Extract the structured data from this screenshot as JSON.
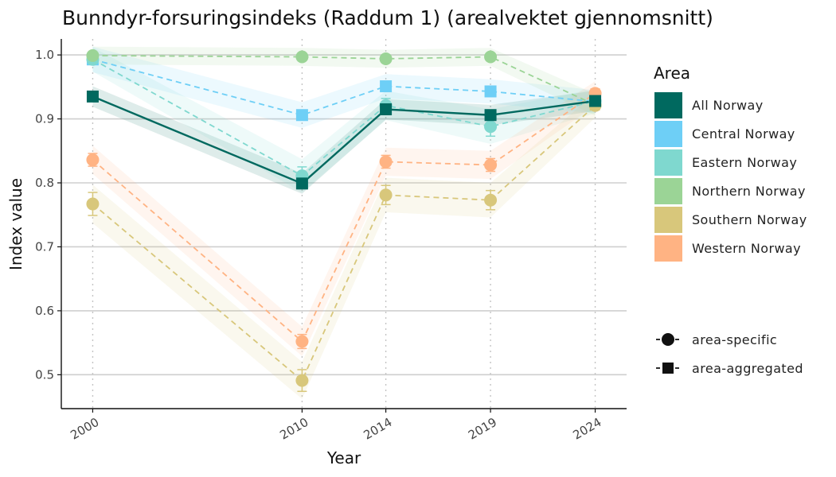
{
  "chart_data": {
    "type": "line",
    "title": "Bunndyr-forsuringsindeks (Raddum 1) (arealvektet gjennomsnitt)",
    "xlabel": "Year",
    "ylabel": "Index value",
    "x": [
      2000,
      2010,
      2014,
      2019,
      2024
    ],
    "x_tick_labels": [
      "2000",
      "2010",
      "2014",
      "2019",
      "2024"
    ],
    "xlim": [
      1998.5,
      2025.5
    ],
    "y_ticks": [
      0.5,
      0.6,
      0.7,
      0.8,
      0.9,
      1.0
    ],
    "y_tick_labels": [
      "0.5",
      "0.6",
      "0.7",
      "0.8",
      "0.9",
      "1.0"
    ],
    "ylim": [
      0.447,
      1.025
    ],
    "grid": "horizontal major + dotted vertical at data years",
    "legend": {
      "title": "Area",
      "position": "right",
      "shape_entries": [
        {
          "label": "area-specific",
          "shape": "circle"
        },
        {
          "label": "area-aggregated",
          "shape": "square"
        }
      ]
    },
    "series": [
      {
        "name": "All Norway",
        "color": "#00695f",
        "shape": "square",
        "line": "solid",
        "values": [
          0.935,
          0.799,
          0.915,
          0.906,
          0.928
        ],
        "lower": [
          0.931,
          0.795,
          0.911,
          0.902,
          0.924
        ],
        "upper": [
          0.939,
          0.803,
          0.919,
          0.91,
          0.932
        ]
      },
      {
        "name": "Central Norway",
        "color": "#6ecff6",
        "shape": "square",
        "line": "dashed",
        "values": [
          0.993,
          0.906,
          0.951,
          0.943,
          0.927
        ],
        "lower": [
          0.985,
          0.898,
          0.944,
          0.936,
          0.921
        ],
        "upper": [
          1.001,
          0.914,
          0.958,
          0.95,
          0.933
        ]
      },
      {
        "name": "Eastern Norway",
        "color": "#7fd8cf",
        "shape": "circle",
        "line": "dashed",
        "values": [
          0.993,
          0.811,
          0.921,
          0.888,
          0.928
        ],
        "lower": [
          0.986,
          0.797,
          0.91,
          0.873,
          0.921
        ],
        "upper": [
          1.0,
          0.825,
          0.932,
          0.903,
          0.935
        ]
      },
      {
        "name": "Northern Norway",
        "color": "#9bd496",
        "shape": "circle",
        "line": "dashed",
        "values": [
          0.999,
          0.997,
          0.994,
          0.997,
          0.922
        ],
        "lower": [
          0.997,
          0.995,
          0.992,
          0.995,
          0.917
        ],
        "upper": [
          1.001,
          0.999,
          0.996,
          0.999,
          0.927
        ]
      },
      {
        "name": "Southern Norway",
        "color": "#d8c77b",
        "shape": "circle",
        "line": "dashed",
        "values": [
          0.767,
          0.491,
          0.781,
          0.773,
          0.921
        ],
        "lower": [
          0.749,
          0.474,
          0.766,
          0.758,
          0.914
        ],
        "upper": [
          0.785,
          0.508,
          0.796,
          0.788,
          0.928
        ]
      },
      {
        "name": "Western Norway",
        "color": "#ffb383",
        "shape": "circle",
        "line": "dashed",
        "values": [
          0.836,
          0.552,
          0.833,
          0.828,
          0.94
        ],
        "lower": [
          0.826,
          0.541,
          0.823,
          0.818,
          0.933
        ],
        "upper": [
          0.846,
          0.563,
          0.843,
          0.838,
          0.947
        ]
      }
    ]
  }
}
